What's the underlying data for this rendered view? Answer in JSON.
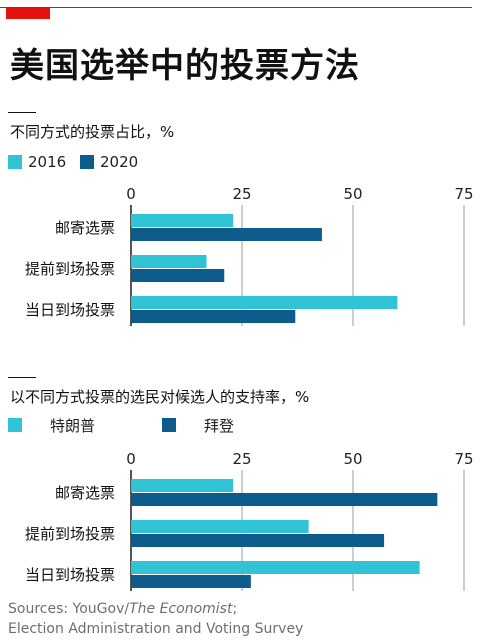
{
  "title": "美国选举中的投票方法",
  "charts": [
    {
      "subtitle": "不同方式的投票占比，%",
      "legend": [
        {
          "label": "2016",
          "color": "#30c3d3"
        },
        {
          "label": "2020",
          "color": "#0e5c8c"
        }
      ]
    },
    {
      "subtitle": "以不同方式投票的选民对候选人的支持率，%",
      "legend": [
        {
          "label": "特朗普",
          "color": "#30c3d3"
        },
        {
          "label": "拜登",
          "color": "#0e5c8c"
        }
      ]
    }
  ],
  "chart_data": [
    {
      "type": "bar",
      "orientation": "horizontal",
      "title": "不同方式的投票占比，%",
      "categories": [
        "邮寄选票",
        "提前到场投票",
        "当日到场投票"
      ],
      "series": [
        {
          "name": "2016",
          "values": [
            23,
            17,
            60
          ],
          "color": "#30c3d3"
        },
        {
          "name": "2020",
          "values": [
            43,
            21,
            37
          ],
          "color": "#0e5c8c"
        }
      ],
      "xlim": [
        0,
        75
      ],
      "xticks": [
        0,
        25,
        50,
        75
      ],
      "grid": true,
      "legend": "top-left"
    },
    {
      "type": "bar",
      "orientation": "horizontal",
      "title": "以不同方式投票的选民对候选人的支持率，%",
      "categories": [
        "邮寄选票",
        "提前到场投票",
        "当日到场投票"
      ],
      "series": [
        {
          "name": "特朗普",
          "values": [
            23,
            40,
            65
          ],
          "color": "#30c3d3"
        },
        {
          "name": "拜登",
          "values": [
            69,
            57,
            27
          ],
          "color": "#0e5c8c"
        }
      ],
      "xlim": [
        0,
        75
      ],
      "xticks": [
        0,
        25,
        50,
        75
      ],
      "grid": true,
      "legend": "top-left"
    }
  ],
  "sources": {
    "line1_prefix": "Sources: YouGov/",
    "line1_italic": "The Economist",
    "line1_suffix": ";",
    "line2": "Election Administration and Voting Survey"
  }
}
